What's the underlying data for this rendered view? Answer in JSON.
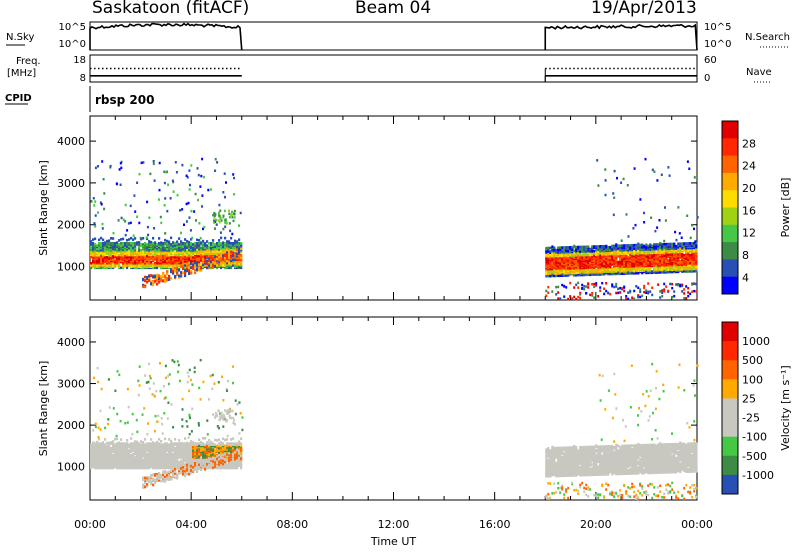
{
  "header": {
    "station": "Saskatoon (fitACF)",
    "beam": "Beam 04",
    "date": "19/Apr/2013"
  },
  "chart_data": [
    {
      "type": "line",
      "panel": "noise",
      "left_label": "N.Sky",
      "right_label": "N.Search",
      "left_ticks": [
        "10^5",
        "10^0"
      ],
      "right_ticks": [
        "10^5",
        "10^0"
      ],
      "series": [
        {
          "segments": [
            [
              0,
              6
            ],
            [
              18,
              24
            ]
          ],
          "level": 0.8
        }
      ]
    },
    {
      "type": "line",
      "panel": "freq",
      "left_label_top": "Freq.",
      "left_label_unit": "[MHz]",
      "right_label": "Nave",
      "left_ticks": [
        "18",
        "8"
      ],
      "right_ticks": [
        "60",
        "0"
      ],
      "ylim_left": [
        8,
        18
      ],
      "ylim_right": [
        0,
        60
      ],
      "series": [
        {
          "name": "Freq",
          "style": "solid",
          "value": 10.3,
          "segments": [
            [
              0,
              6
            ],
            [
              18,
              24
            ]
          ]
        },
        {
          "name": "Nave",
          "style": "dotted",
          "value": 30,
          "segments": [
            [
              0,
              6
            ],
            [
              18,
              24
            ]
          ]
        }
      ]
    },
    {
      "type": "table",
      "panel": "cpid",
      "label": "CPID",
      "entries": [
        {
          "start": 0,
          "text": "rbsp 200"
        }
      ]
    },
    {
      "type": "heatmap",
      "panel": "power",
      "ylabel": "Slant Range [km]",
      "ylim": [
        200,
        4600
      ],
      "yticks": [
        1000,
        2000,
        3000,
        4000
      ],
      "xlim": [
        0,
        24
      ],
      "colorbar_label": "Power [dB]",
      "colorbar_ticks": [
        "28",
        "24",
        "20",
        "16",
        "12",
        "8",
        "4"
      ],
      "colors": [
        "#0000ff",
        "#2850b4",
        "#3c8c46",
        "#46c846",
        "#a0d214",
        "#ffdc00",
        "#ffaa00",
        "#ff6400",
        "#ff2800",
        "#e10000"
      ]
    },
    {
      "type": "heatmap",
      "panel": "velocity",
      "ylabel": "Slant Range [km]",
      "ylim": [
        200,
        4600
      ],
      "yticks": [
        1000,
        2000,
        3000,
        4000
      ],
      "xlim": [
        0,
        24
      ],
      "xlabel": "Time UT",
      "xticks": [
        "00:00",
        "04:00",
        "08:00",
        "12:00",
        "16:00",
        "20:00",
        "00:00"
      ],
      "colorbar_label": "Velocity [m s⁻¹]",
      "colorbar_ticks": [
        "1000",
        "500",
        "100",
        "25",
        "-25",
        "-100",
        "-500",
        "-1000"
      ],
      "colors": [
        "#2850b4",
        "#3c8c46",
        "#46c846",
        "#c8c8c0",
        "#c8c8c0",
        "#ffaa00",
        "#ff6400",
        "#ff2800",
        "#e10000"
      ]
    }
  ]
}
